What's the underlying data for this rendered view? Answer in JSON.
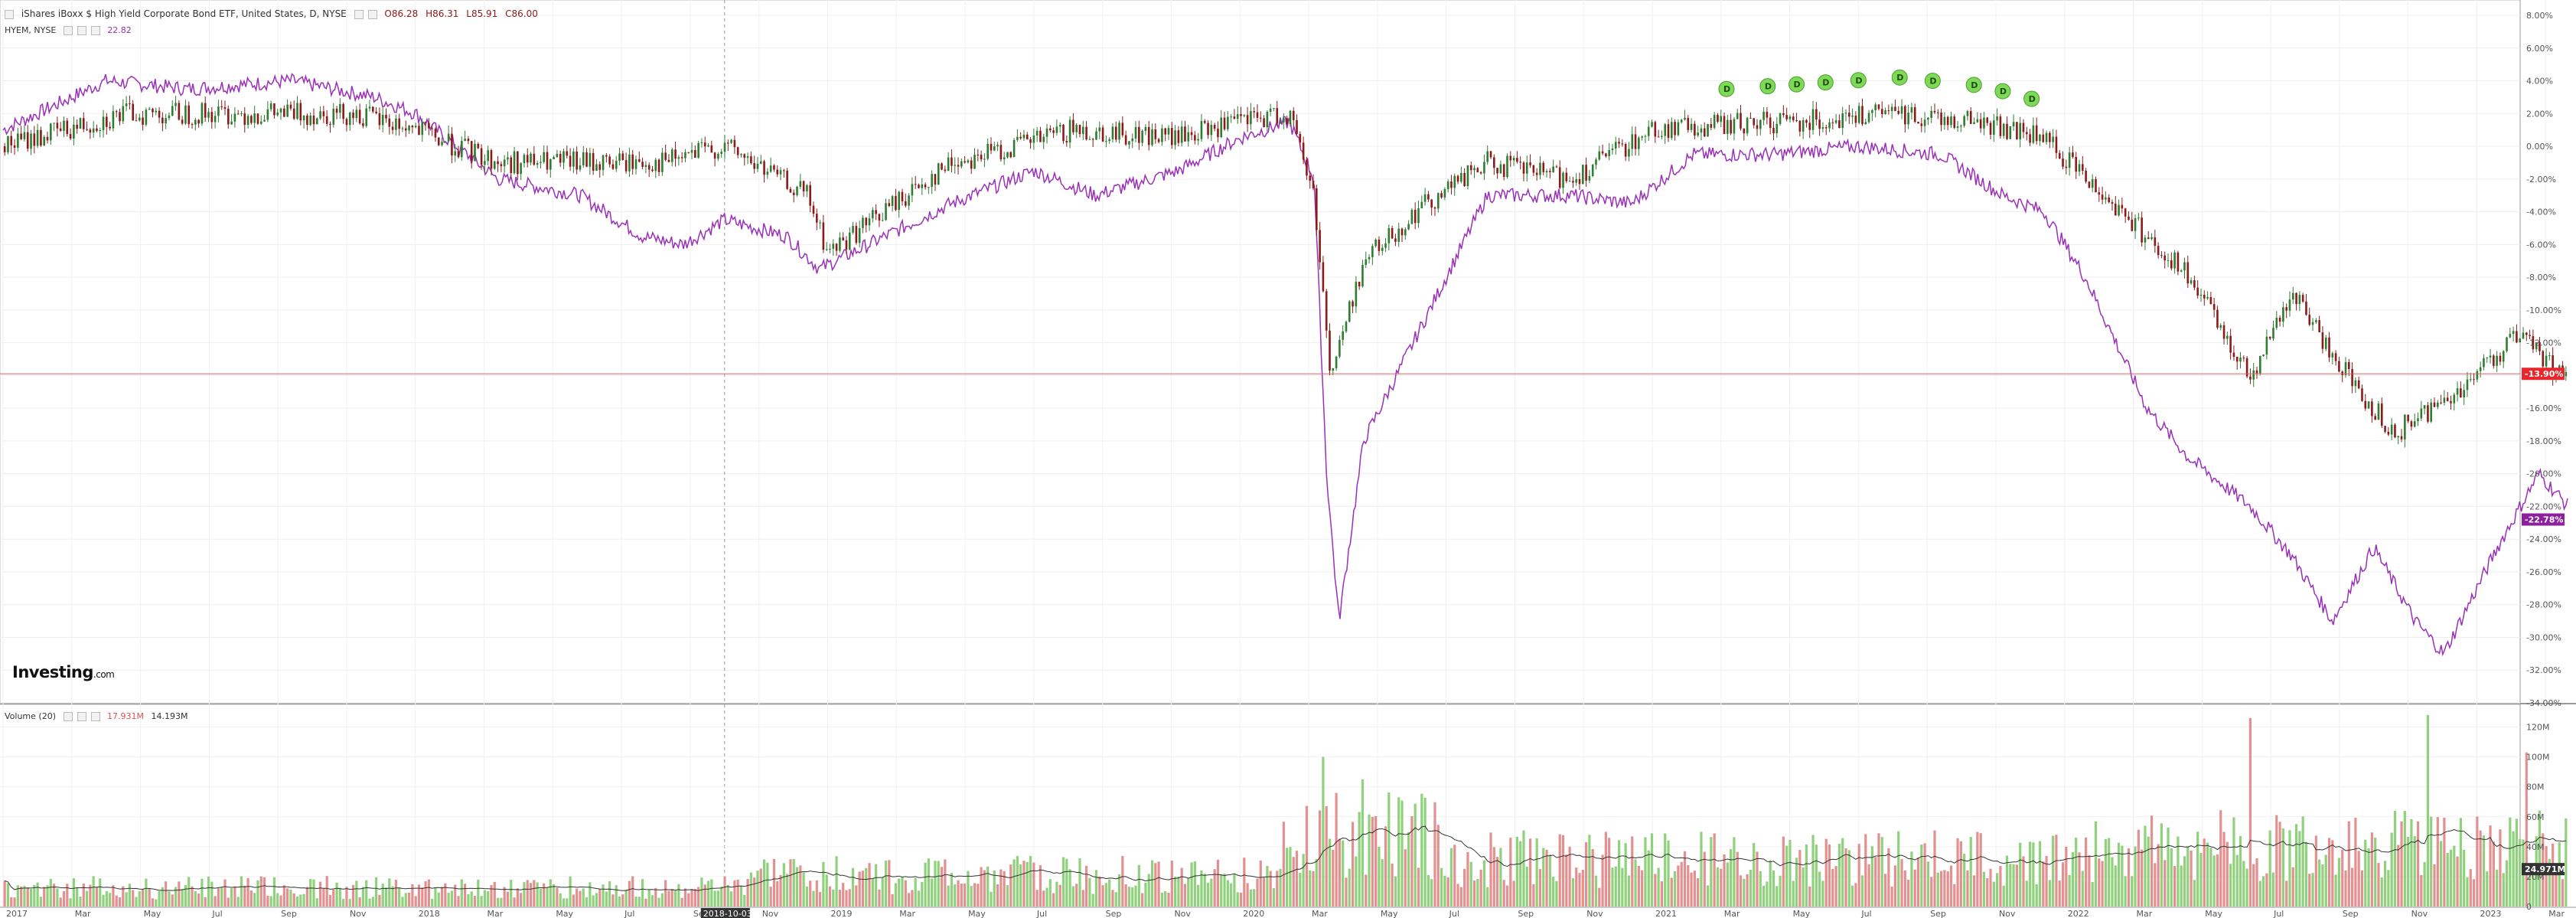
{
  "header": {
    "title": "iShares iBoxx $ High Yield Corporate Bond ETF, United States, D, NYSE",
    "open": "O86.28",
    "high": "H86.31",
    "low": "L85.91",
    "close": "C86.00",
    "compare_symbol": "HYEM, NYSE",
    "compare_value": "22.82"
  },
  "volume_legend": {
    "label": "Volume (20)",
    "value1": "17.931M",
    "value2": "14.193M"
  },
  "watermark": {
    "brand": "Investing",
    "suffix": ".com"
  },
  "crosshair": {
    "date_label": "2018-10-03"
  },
  "colors": {
    "up": "#2e7d32",
    "down": "#8b1a1a",
    "compare": "#9b30b8",
    "vol_up": "#8fd17c",
    "vol_down": "#e39090",
    "current_line": "#e06060"
  },
  "chart_data": [
    {
      "type": "line",
      "title": "iShares iBoxx $ High Yield Corporate Bond ETF, United States, D, NYSE",
      "x_axis_labels": [
        "2017",
        "Mar",
        "May",
        "Jul",
        "Sep",
        "Nov",
        "2018",
        "Mar",
        "May",
        "Jul",
        "Sep",
        "Nov",
        "2019",
        "Mar",
        "May",
        "Jul",
        "Sep",
        "Nov",
        "2020",
        "Mar",
        "May",
        "Jul",
        "Sep",
        "Nov",
        "2021",
        "Mar",
        "May",
        "Jul",
        "Sep",
        "Nov",
        "2022",
        "Mar",
        "May",
        "Jul",
        "Sep",
        "Nov",
        "2023",
        "Mar"
      ],
      "y_axis_labels": [
        "8.00%",
        "6.00%",
        "4.00%",
        "2.00%",
        "0.00%",
        "-2.00%",
        "-4.00%",
        "-6.00%",
        "-8.00%",
        "-10.00%",
        "-12.00%",
        "-14.00%",
        "-16.00%",
        "-18.00%",
        "-20.00%",
        "-22.00%",
        "-24.00%",
        "-26.00%",
        "-28.00%",
        "-30.00%",
        "-32.00%",
        "-34.00%"
      ],
      "y_range": [
        -34,
        8
      ],
      "y_unit": "%",
      "grid": true,
      "series": [
        {
          "name": "iShares iBoxx $ High Yield Corporate Bond ETF",
          "style": "candlestick",
          "x": [
            2017.0,
            2017.3,
            2017.6,
            2017.85,
            2018.0,
            2018.2,
            2018.4,
            2018.6,
            2018.75,
            2018.95,
            2019.0,
            2019.3,
            2019.6,
            2019.85,
            2020.0,
            2020.12,
            2020.18,
            2020.22,
            2020.3,
            2020.45,
            2020.6,
            2020.8,
            2021.0,
            2021.3,
            2021.6,
            2021.8,
            2021.95,
            2022.1,
            2022.3,
            2022.45,
            2022.55,
            2022.7,
            2022.8,
            2022.95,
            2023.1,
            2023.2
          ],
          "y": [
            0.0,
            2.0,
            2.0,
            2.0,
            1.0,
            -1.0,
            -1.0,
            -1.0,
            0.0,
            -3.0,
            -6.5,
            -1.0,
            1.0,
            0.5,
            1.5,
            2.0,
            -3.0,
            -14.0,
            -7.0,
            -3.5,
            -1.0,
            -2.0,
            1.0,
            1.5,
            2.0,
            1.5,
            0.5,
            -3.0,
            -8.0,
            -14.0,
            -9.0,
            -14.5,
            -17.5,
            -15.0,
            -11.5,
            -13.9
          ]
        },
        {
          "name": "HYEM, NYSE",
          "style": "line",
          "x": [
            2017.0,
            2017.25,
            2017.45,
            2017.7,
            2017.9,
            2018.0,
            2018.2,
            2018.4,
            2018.55,
            2018.65,
            2018.75,
            2018.9,
            2018.98,
            2019.3,
            2019.5,
            2019.65,
            2019.85,
            2020.0,
            2020.12,
            2020.18,
            2020.21,
            2020.24,
            2020.3,
            2020.4,
            2020.6,
            2020.8,
            2020.95,
            2021.1,
            2021.3,
            2021.5,
            2021.7,
            2021.85,
            2021.95,
            2022.05,
            2022.2,
            2022.3,
            2022.45,
            2022.55,
            2022.65,
            2022.75,
            2022.85,
            2022.92,
            2023.05,
            2023.15,
            2023.25
          ],
          "y": [
            1.0,
            4.0,
            3.5,
            4.0,
            3.0,
            2.0,
            -2.0,
            -3.0,
            -5.5,
            -6.0,
            -4.5,
            -5.5,
            -7.5,
            -3.5,
            -1.5,
            -3.0,
            -1.5,
            0.5,
            1.5,
            -2.0,
            -20.0,
            -29.0,
            -18.0,
            -13.0,
            -3.0,
            -3.0,
            -3.5,
            -0.5,
            -0.5,
            0.0,
            -0.5,
            -3.0,
            -4.0,
            -8.0,
            -16.0,
            -19.0,
            -22.0,
            -25.0,
            -29.0,
            -24.5,
            -29.0,
            -31.0,
            -24.5,
            -20.0,
            -22.8
          ]
        }
      ],
      "last_values": {
        "primary": "-13.90%",
        "compare": "-22.78%"
      },
      "dividend_markers": {
        "label": "D",
        "x": [
          2021.18,
          2021.28,
          2021.35,
          2021.42,
          2021.5,
          2021.6,
          2021.68,
          2021.78,
          2021.85,
          2021.92
        ]
      }
    },
    {
      "type": "bar",
      "title": "Volume (20)",
      "y_axis_labels": [
        "120M",
        "100M",
        "80M",
        "60M",
        "40M",
        "20M",
        "0"
      ],
      "y_range": [
        0,
        130
      ],
      "y_unit": "M",
      "last_value": "24.971M",
      "moving_average_length": 20,
      "spikes": [
        {
          "x": 2020.2,
          "value": 100
        },
        {
          "x": 2020.3,
          "value": 85
        },
        {
          "x": 2022.45,
          "value": 126
        },
        {
          "x": 2022.88,
          "value": 128
        },
        {
          "x": 2023.12,
          "value": 103
        }
      ]
    }
  ]
}
